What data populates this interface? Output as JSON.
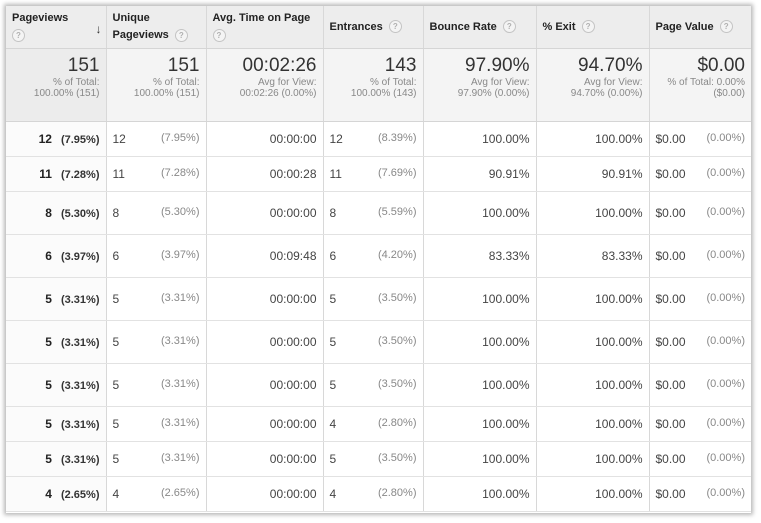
{
  "columns": [
    {
      "label": "Pageviews",
      "help": "?"
    },
    {
      "label": "Unique Pageviews",
      "line1": "Unique",
      "line2": "Pageviews",
      "help": "?"
    },
    {
      "label": "Avg. Time on Page",
      "help": "?"
    },
    {
      "label": "Entrances",
      "help": "?"
    },
    {
      "label": "Bounce Rate",
      "help": "?"
    },
    {
      "label": "% Exit",
      "help": "?"
    },
    {
      "label": "Page Value",
      "help": "?"
    }
  ],
  "sort_icon": "arrow-down-icon",
  "totals": [
    {
      "value": "151",
      "sub1": "% of Total:",
      "sub2": "100.00% (151)"
    },
    {
      "value": "151",
      "sub1": "% of Total:",
      "sub2": "100.00% (151)"
    },
    {
      "value": "00:02:26",
      "sub1": "Avg for View:",
      "sub2": "00:02:26 (0.00%)"
    },
    {
      "value": "143",
      "sub1": "% of Total:",
      "sub2": "100.00% (143)"
    },
    {
      "value": "97.90%",
      "sub1": "Avg for View:",
      "sub2": "97.90% (0.00%)"
    },
    {
      "value": "94.70%",
      "sub1": "Avg for View:",
      "sub2": "94.70% (0.00%)"
    },
    {
      "value": "$0.00",
      "sub1": "% of Total: 0.00%",
      "sub2": "($0.00)"
    }
  ],
  "rows": [
    {
      "pv": "12",
      "pv_pct": "(7.95%)",
      "upv": "12",
      "upv_pct": "(7.95%)",
      "time": "00:00:00",
      "ent": "12",
      "ent_pct": "(8.39%)",
      "bounce": "100.00%",
      "exit": "100.00%",
      "value": "$0.00",
      "value_pct": "(0.00%)"
    },
    {
      "pv": "11",
      "pv_pct": "(7.28%)",
      "upv": "11",
      "upv_pct": "(7.28%)",
      "time": "00:00:28",
      "ent": "11",
      "ent_pct": "(7.69%)",
      "bounce": "90.91%",
      "exit": "90.91%",
      "value": "$0.00",
      "value_pct": "(0.00%)"
    },
    {
      "pv": "8",
      "pv_pct": "(5.30%)",
      "upv": "8",
      "upv_pct": "(5.30%)",
      "time": "00:00:00",
      "ent": "8",
      "ent_pct": "(5.59%)",
      "bounce": "100.00%",
      "exit": "100.00%",
      "value": "$0.00",
      "value_pct": "(0.00%)"
    },
    {
      "pv": "6",
      "pv_pct": "(3.97%)",
      "upv": "6",
      "upv_pct": "(3.97%)",
      "time": "00:09:48",
      "ent": "6",
      "ent_pct": "(4.20%)",
      "bounce": "83.33%",
      "exit": "83.33%",
      "value": "$0.00",
      "value_pct": "(0.00%)"
    },
    {
      "pv": "5",
      "pv_pct": "(3.31%)",
      "upv": "5",
      "upv_pct": "(3.31%)",
      "time": "00:00:00",
      "ent": "5",
      "ent_pct": "(3.50%)",
      "bounce": "100.00%",
      "exit": "100.00%",
      "value": "$0.00",
      "value_pct": "(0.00%)"
    },
    {
      "pv": "5",
      "pv_pct": "(3.31%)",
      "upv": "5",
      "upv_pct": "(3.31%)",
      "time": "00:00:00",
      "ent": "5",
      "ent_pct": "(3.50%)",
      "bounce": "100.00%",
      "exit": "100.00%",
      "value": "$0.00",
      "value_pct": "(0.00%)"
    },
    {
      "pv": "5",
      "pv_pct": "(3.31%)",
      "upv": "5",
      "upv_pct": "(3.31%)",
      "time": "00:00:00",
      "ent": "5",
      "ent_pct": "(3.50%)",
      "bounce": "100.00%",
      "exit": "100.00%",
      "value": "$0.00",
      "value_pct": "(0.00%)"
    },
    {
      "pv": "5",
      "pv_pct": "(3.31%)",
      "upv": "5",
      "upv_pct": "(3.31%)",
      "time": "00:00:00",
      "ent": "4",
      "ent_pct": "(2.80%)",
      "bounce": "100.00%",
      "exit": "100.00%",
      "value": "$0.00",
      "value_pct": "(0.00%)"
    },
    {
      "pv": "5",
      "pv_pct": "(3.31%)",
      "upv": "5",
      "upv_pct": "(3.31%)",
      "time": "00:00:00",
      "ent": "5",
      "ent_pct": "(3.50%)",
      "bounce": "100.00%",
      "exit": "100.00%",
      "value": "$0.00",
      "value_pct": "(0.00%)"
    },
    {
      "pv": "4",
      "pv_pct": "(2.65%)",
      "upv": "4",
      "upv_pct": "(2.65%)",
      "time": "00:00:00",
      "ent": "4",
      "ent_pct": "(2.80%)",
      "bounce": "100.00%",
      "exit": "100.00%",
      "value": "$0.00",
      "value_pct": "(0.00%)"
    }
  ]
}
